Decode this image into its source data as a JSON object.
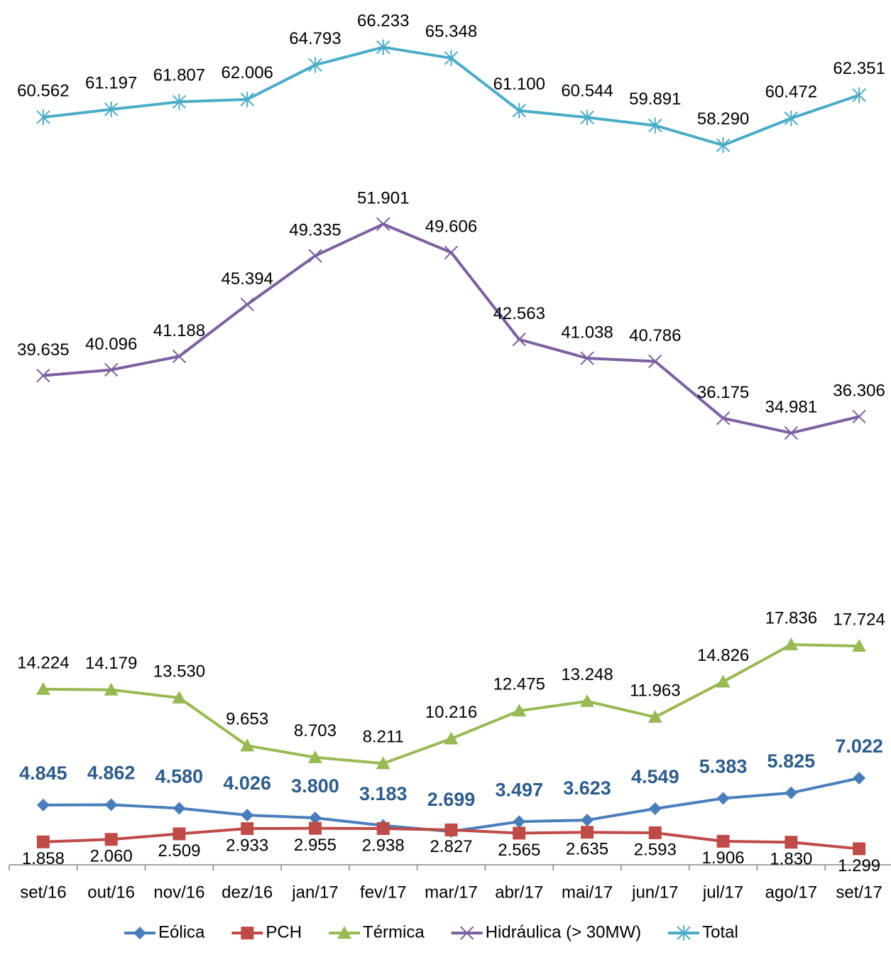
{
  "chart_data": {
    "type": "line",
    "categories": [
      "set/16",
      "out/16",
      "nov/16",
      "dez/16",
      "jan/17",
      "fev/17",
      "mar/17",
      "abr/17",
      "mai/17",
      "jun/17",
      "jul/17",
      "ago/17",
      "set/17"
    ],
    "ylim": [
      0,
      70000
    ],
    "legend": "bottom",
    "series": [
      {
        "name": "Eólica",
        "color": "#4a7ebb",
        "marker": "diamond",
        "values": [
          4845,
          4862,
          4580,
          4026,
          3800,
          3183,
          2699,
          3497,
          3623,
          4549,
          5383,
          5825,
          7022
        ],
        "value_labels": [
          "4.845",
          "4.862",
          "4.580",
          "4.026",
          "3.800",
          "3.183",
          "2.699",
          "3.497",
          "3.623",
          "4.549",
          "5.383",
          "5.825",
          "7.022"
        ]
      },
      {
        "name": "PCH",
        "color": "#be4b48",
        "marker": "square",
        "values": [
          1858,
          2060,
          2509,
          2933,
          2955,
          2938,
          2827,
          2565,
          2635,
          2593,
          1906,
          1830,
          1299
        ],
        "value_labels": [
          "1.858",
          "2.060",
          "2.509",
          "2.933",
          "2.955",
          "2.938",
          "2.827",
          "2.565",
          "2.635",
          "2.593",
          "1.906",
          "1.830",
          "1.299"
        ]
      },
      {
        "name": "Térmica",
        "color": "#98b954",
        "marker": "triangle",
        "values": [
          14224,
          14179,
          13530,
          9653,
          8703,
          8211,
          10216,
          12475,
          13248,
          11963,
          14826,
          17836,
          17724
        ],
        "value_labels": [
          "14.224",
          "14.179",
          "13.530",
          "9.653",
          "8.703",
          "8.211",
          "10.216",
          "12.475",
          "13.248",
          "11.963",
          "14.826",
          "17.836",
          "17.724"
        ]
      },
      {
        "name": "Hidráulica (> 30MW)",
        "color": "#7d60a0",
        "marker": "x",
        "values": [
          39635,
          40096,
          41188,
          45394,
          49335,
          51901,
          49606,
          42563,
          41038,
          40786,
          36175,
          34981,
          36306
        ],
        "value_labels": [
          "39.635",
          "40.096",
          "41.188",
          "45.394",
          "49.335",
          "51.901",
          "49.606",
          "42.563",
          "41.038",
          "40.786",
          "36.175",
          "34.981",
          "36.306"
        ]
      },
      {
        "name": "Total",
        "color": "#4bacc6",
        "marker": "star",
        "values": [
          60562,
          61197,
          61807,
          62006,
          64793,
          66233,
          65348,
          61100,
          60544,
          59891,
          58290,
          60472,
          62351
        ],
        "value_labels": [
          "60.562",
          "61.197",
          "61.807",
          "62.006",
          "64.793",
          "66.233",
          "65.348",
          "61.100",
          "60.544",
          "59.891",
          "58.290",
          "60.472",
          "62.351"
        ]
      }
    ]
  }
}
